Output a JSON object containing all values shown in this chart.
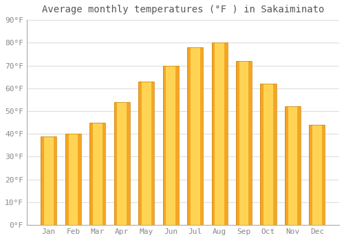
{
  "title": "Average monthly temperatures (°F ) in Sakaiminato",
  "months": [
    "Jan",
    "Feb",
    "Mar",
    "Apr",
    "May",
    "Jun",
    "Jul",
    "Aug",
    "Sep",
    "Oct",
    "Nov",
    "Dec"
  ],
  "values": [
    39,
    40,
    45,
    54,
    63,
    70,
    78,
    80,
    72,
    62,
    52,
    44
  ],
  "bar_color_edge": "#F5A623",
  "bar_color_center": "#FFD454",
  "ylim": [
    0,
    90
  ],
  "yticks": [
    0,
    10,
    20,
    30,
    40,
    50,
    60,
    70,
    80,
    90
  ],
  "background_color": "#FFFFFF",
  "plot_bg_color": "#F5F5F5",
  "grid_color": "#DDDDDD",
  "title_fontsize": 10,
  "tick_fontsize": 8,
  "tick_color": "#888888",
  "title_color": "#555555"
}
